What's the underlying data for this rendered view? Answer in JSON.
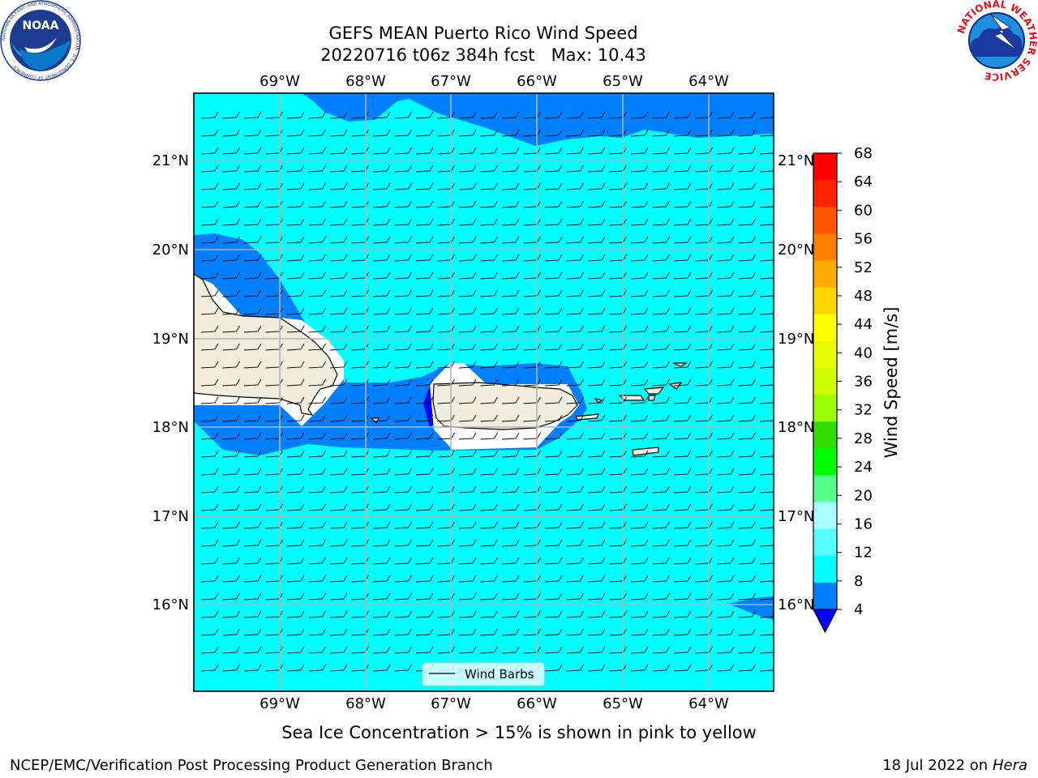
{
  "title": {
    "line1": "GEFS MEAN Puerto Rico Wind Speed",
    "line2": "20220716 t06z 384h fcst   Max: 10.43"
  },
  "logos": {
    "noaa_text": "NOAA",
    "noaa_ring": "NATIONAL OCEANIC AND ATMOSPHERIC ADMINISTRATION · U.S. DEPARTMENT OF COMMERCE",
    "nws_ring": "NATIONAL WEATHER SERVICE"
  },
  "map": {
    "lon_labels": [
      "69°W",
      "68°W",
      "67°W",
      "66°W",
      "65°W",
      "64°W"
    ],
    "lat_labels": [
      "21°N",
      "20°N",
      "19°N",
      "18°N",
      "17°N",
      "16°N"
    ],
    "legend_label": "Wind Barbs",
    "colors": {
      "fill_8_12": "#00ffff",
      "fill_4_8": "#0080ff",
      "fill_lt_4": "#0000ff",
      "land": "#efeedd",
      "grid": "#b4b4b4"
    }
  },
  "colorbar": {
    "label": "Wind Speed [m/s]",
    "ticks": [
      "68",
      "64",
      "60",
      "56",
      "52",
      "48",
      "44",
      "40",
      "36",
      "32",
      "28",
      "24",
      "20",
      "16",
      "12",
      "8",
      "4"
    ],
    "colors": [
      "#ff0000",
      "#ff2200",
      "#ff5500",
      "#ff8000",
      "#ffaa00",
      "#ffd500",
      "#ffff00",
      "#e6ff00",
      "#ccff00",
      "#99ff00",
      "#33dd00",
      "#00ff00",
      "#55ff88",
      "#aaffff",
      "#55ffff",
      "#00ffff",
      "#0080ff"
    ],
    "under_color": "#0000ff"
  },
  "footer": {
    "note": "Sea Ice Concentration > 15% is shown in pink to yellow",
    "credit": "NCEP/EMC/Verification Post Processing Product Generation Branch",
    "date": "18 Jul 2022 on ",
    "machine": "Hera"
  }
}
